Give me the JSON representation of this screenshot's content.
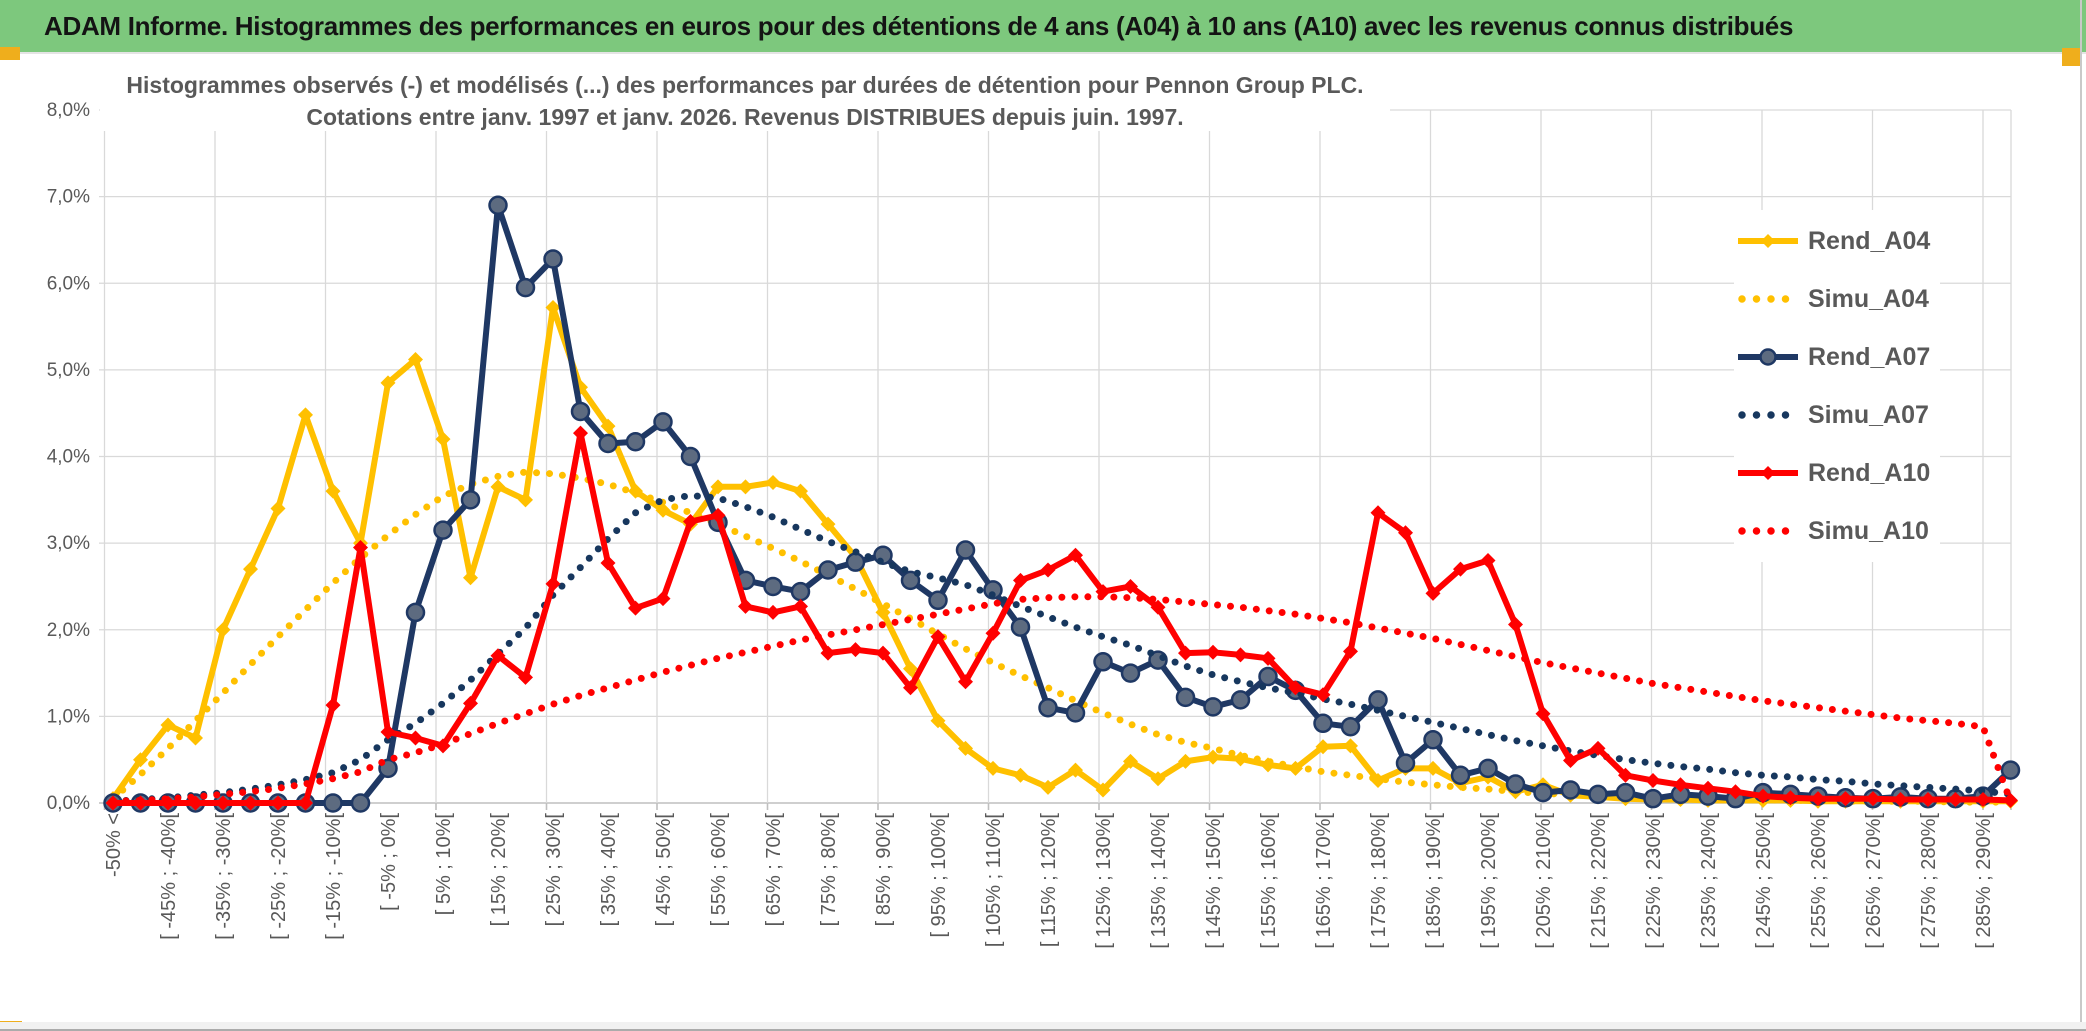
{
  "window": {
    "banner_title": "ADAM Informe. Histogrammes des performances en euros pour des détentions de 4 ans (A04) à 10 ans (A10) avec les revenus connus distribués",
    "colors": {
      "banner_green": "#7dc87d",
      "gold_accent": "#efae1c",
      "text_gray": "#595959",
      "gridline": "#d9d9d9",
      "axis_line": "#bfbfbf",
      "series_gold": "#FFC000",
      "series_navy": "#1F3864",
      "series_red": "#FF0000"
    }
  },
  "chart_data": {
    "type": "line",
    "title_line1": "Histogrammes observés (-) et modélisés (...) des performances par durées de détention pour Pennon Group PLC.",
    "title_line2": "Cotations entre janv. 1997 et janv. 2026. Revenus DISTRIBUES depuis juin. 1997.",
    "ylim": [
      0,
      8
    ],
    "ytick_labels": [
      "0,0%",
      "1,0%",
      "2,0%",
      "3,0%",
      "4,0%",
      "5,0%",
      "6,0%",
      "7,0%",
      "8,0%"
    ],
    "grid": "on",
    "legend_position": "right",
    "categories": [
      "-50% <",
      "",
      "[ -45% ; -40%[",
      "",
      "[ -35% ; -30%[",
      "",
      "[ -25% ; -20%[",
      "",
      "[ -15% ; -10%[",
      "",
      "[ -5% ; 0%[",
      "",
      "[ 5% ; 10%[",
      "",
      "[ 15% ; 20%[",
      "",
      "[ 25% ; 30%[",
      "",
      "[ 35% ; 40%[",
      "",
      "[ 45% ; 50%[",
      "",
      "[ 55% ; 60%[",
      "",
      "[ 65% ; 70%[",
      "",
      "[ 75% ; 80%[",
      "",
      "[ 85% ; 90%[",
      "",
      "[ 95% ; 100%[",
      "",
      "[ 105% ; 110%[",
      "",
      "[ 115% ; 120%[",
      "",
      "[ 125% ; 130%[",
      "",
      "[ 135% ; 140%[",
      "",
      "[ 145% ; 150%[",
      "",
      "[ 155% ; 160%[",
      "",
      "[ 165% ; 170%[",
      "",
      "[ 175% ; 180%[",
      "",
      "[ 185% ; 190%[",
      "",
      "[ 195% ; 200%[",
      "",
      "[ 205% ; 210%[",
      "",
      "[ 215% ; 220%[",
      "",
      "[ 225% ; 230%[",
      "",
      "[ 235% ; 240%[",
      "",
      "[ 245% ; 250%[",
      "",
      "[ 255% ; 260%[",
      "",
      "[ 265% ; 270%[",
      "",
      "[ 275% ; 280%[",
      "",
      "[ 285% ; 290%[",
      ""
    ],
    "series": [
      {
        "name": "Rend_A04",
        "color": "#FFC000",
        "style": "solid",
        "marker": "diamond",
        "marker_fill": "#FFC000",
        "values": [
          0.05,
          0.5,
          0.9,
          0.75,
          2.0,
          2.7,
          3.4,
          4.48,
          3.6,
          3.0,
          4.85,
          5.12,
          4.2,
          2.6,
          3.65,
          3.5,
          5.72,
          4.8,
          4.35,
          3.6,
          3.38,
          3.22,
          3.65,
          3.65,
          3.7,
          3.6,
          3.22,
          2.84,
          2.2,
          1.55,
          0.95,
          0.63,
          0.4,
          0.32,
          0.18,
          0.38,
          0.15,
          0.48,
          0.28,
          0.48,
          0.53,
          0.51,
          0.44,
          0.4,
          0.65,
          0.66,
          0.26,
          0.4,
          0.4,
          0.23,
          0.3,
          0.13,
          0.21,
          0.09,
          0.07,
          0.05,
          0.04,
          0.04,
          0.03,
          0.03,
          0.03,
          0.03,
          0.02,
          0.02,
          0.02,
          0.02,
          0.02,
          0.02,
          0.02,
          0.02
        ]
      },
      {
        "name": "Simu_A04",
        "color": "#FFC000",
        "style": "dotted",
        "values": [
          0.05,
          0.33,
          0.63,
          0.95,
          1.27,
          1.6,
          1.92,
          2.23,
          2.54,
          2.83,
          3.09,
          3.33,
          3.54,
          3.68,
          3.77,
          3.82,
          3.8,
          3.75,
          3.68,
          3.58,
          3.47,
          3.35,
          3.22,
          3.08,
          2.94,
          2.79,
          2.63,
          2.47,
          2.3,
          2.13,
          1.95,
          1.78,
          1.62,
          1.47,
          1.33,
          1.18,
          1.04,
          0.91,
          0.79,
          0.7,
          0.63,
          0.55,
          0.48,
          0.42,
          0.36,
          0.32,
          0.28,
          0.24,
          0.21,
          0.18,
          0.16,
          0.13,
          0.11,
          0.1,
          0.08,
          0.07,
          0.06,
          0.05,
          0.05,
          0.04,
          0.04,
          0.03,
          0.03,
          0.02,
          0.02,
          0.02,
          0.02,
          0.01,
          0.01,
          0.01
        ]
      },
      {
        "name": "Rend_A07",
        "color": "#1F3864",
        "style": "solid",
        "marker": "circle",
        "marker_fill": "#5d6b80",
        "values": [
          0,
          0,
          0,
          0,
          0,
          0,
          0,
          0,
          0,
          0,
          0.4,
          2.2,
          3.15,
          3.5,
          6.9,
          5.95,
          6.28,
          4.52,
          4.15,
          4.17,
          4.4,
          4.0,
          3.24,
          2.57,
          2.5,
          2.44,
          2.69,
          2.78,
          2.86,
          2.57,
          2.34,
          2.92,
          2.46,
          2.03,
          1.1,
          1.04,
          1.63,
          1.5,
          1.65,
          1.22,
          1.11,
          1.19,
          1.46,
          1.3,
          0.92,
          0.88,
          1.19,
          0.46,
          0.73,
          0.32,
          0.4,
          0.22,
          0.12,
          0.15,
          0.1,
          0.12,
          0.05,
          0.1,
          0.08,
          0.05,
          0.12,
          0.1,
          0.08,
          0.06,
          0.05,
          0.07,
          0.05,
          0.05,
          0.08,
          0.38
        ]
      },
      {
        "name": "Simu_A07",
        "color": "#17375E",
        "style": "dotted",
        "values": [
          0.02,
          0.04,
          0.06,
          0.09,
          0.12,
          0.16,
          0.21,
          0.27,
          0.35,
          0.5,
          0.73,
          0.92,
          1.15,
          1.42,
          1.72,
          2.02,
          2.4,
          2.72,
          3.05,
          3.35,
          3.5,
          3.55,
          3.52,
          3.42,
          3.3,
          3.16,
          3.02,
          2.9,
          2.78,
          2.67,
          2.6,
          2.52,
          2.4,
          2.27,
          2.15,
          2.03,
          1.92,
          1.82,
          1.7,
          1.58,
          1.48,
          1.4,
          1.33,
          1.27,
          1.2,
          1.14,
          1.07,
          1.0,
          0.93,
          0.86,
          0.79,
          0.72,
          0.66,
          0.6,
          0.55,
          0.5,
          0.46,
          0.42,
          0.39,
          0.35,
          0.32,
          0.3,
          0.27,
          0.25,
          0.22,
          0.2,
          0.18,
          0.16,
          0.14,
          0.1
        ]
      },
      {
        "name": "Rend_A10",
        "color": "#FF0000",
        "style": "solid",
        "marker": "diamond",
        "marker_fill": "#FF0000",
        "values": [
          0,
          0,
          0,
          0,
          0,
          0,
          0,
          0,
          1.13,
          2.95,
          0.82,
          0.75,
          0.66,
          1.15,
          1.7,
          1.45,
          2.53,
          4.27,
          2.77,
          2.25,
          2.36,
          3.25,
          3.32,
          2.27,
          2.2,
          2.27,
          1.73,
          1.77,
          1.73,
          1.33,
          1.92,
          1.4,
          1.96,
          2.57,
          2.69,
          2.86,
          2.44,
          2.5,
          2.26,
          1.73,
          1.74,
          1.71,
          1.67,
          1.33,
          1.25,
          1.75,
          3.35,
          3.12,
          2.42,
          2.7,
          2.8,
          2.06,
          1.03,
          0.49,
          0.63,
          0.32,
          0.26,
          0.21,
          0.17,
          0.13,
          0.08,
          0.06,
          0.05,
          0.05,
          0.05,
          0.04,
          0.04,
          0.04,
          0.04,
          0.03
        ]
      },
      {
        "name": "Simu_A10",
        "color": "#FF0000",
        "style": "dotted",
        "values": [
          0.02,
          0.03,
          0.05,
          0.07,
          0.1,
          0.13,
          0.17,
          0.22,
          0.28,
          0.36,
          0.5,
          0.58,
          0.68,
          0.8,
          0.92,
          1.03,
          1.14,
          1.24,
          1.33,
          1.42,
          1.51,
          1.59,
          1.67,
          1.74,
          1.81,
          1.88,
          1.94,
          2.0,
          2.06,
          2.12,
          2.18,
          2.24,
          2.3,
          2.35,
          2.37,
          2.38,
          2.38,
          2.37,
          2.35,
          2.32,
          2.29,
          2.26,
          2.22,
          2.18,
          2.13,
          2.08,
          2.02,
          1.96,
          1.9,
          1.83,
          1.76,
          1.69,
          1.62,
          1.56,
          1.5,
          1.44,
          1.38,
          1.33,
          1.28,
          1.23,
          1.18,
          1.14,
          1.1,
          1.06,
          1.02,
          0.98,
          0.95,
          0.92,
          0.88,
          0.02
        ]
      }
    ]
  }
}
